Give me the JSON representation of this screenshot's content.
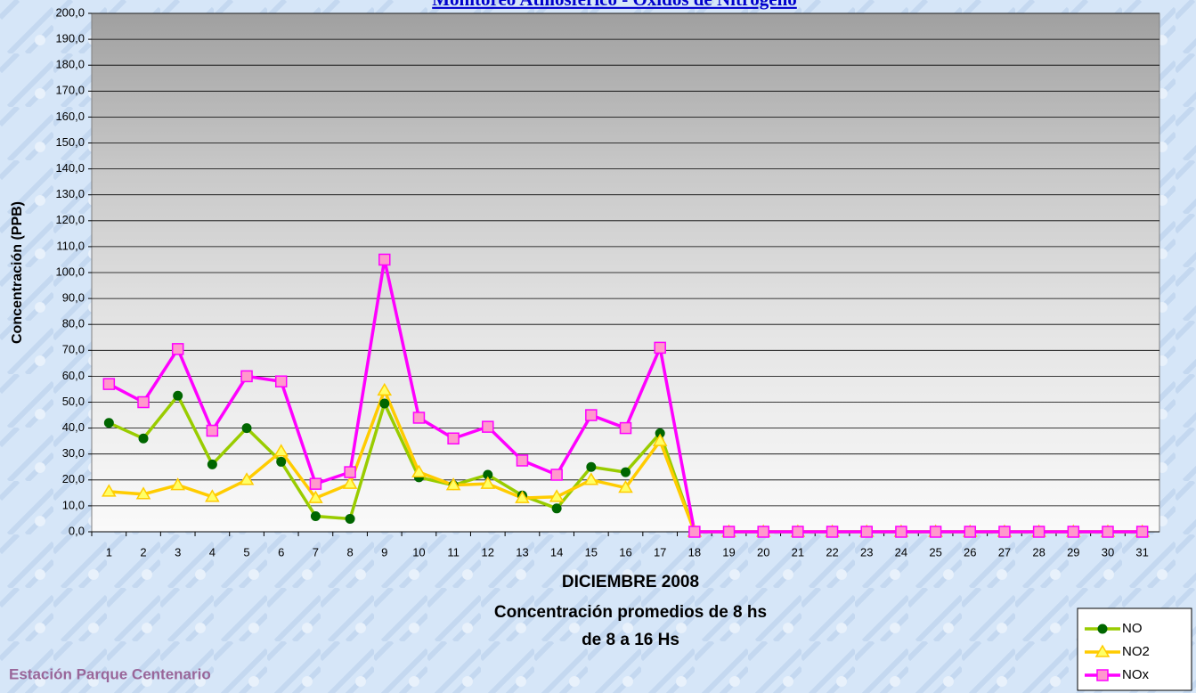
{
  "chart_data": {
    "type": "line",
    "title": "Monitoreo Atmosférico - Óxidos de Nitrógeno",
    "y_label": "Concentración (PPB)",
    "x_label_lines": [
      "DICIEMBRE 2008",
      "Concentración promedios de 8 hs",
      "de 8 a 16 Hs"
    ],
    "footer": "Estación Parque Centenario",
    "categories": [
      "1",
      "2",
      "3",
      "4",
      "5",
      "6",
      "7",
      "8",
      "9",
      "10",
      "11",
      "12",
      "13",
      "14",
      "15",
      "16",
      "17",
      "18",
      "19",
      "20",
      "21",
      "22",
      "23",
      "24",
      "25",
      "26",
      "27",
      "28",
      "29",
      "30",
      "31"
    ],
    "series": [
      {
        "name": "NO",
        "color": "#99cc00",
        "marker": "circle",
        "marker_color": "#006600",
        "values": [
          42,
          36,
          52.5,
          26,
          40,
          27,
          6,
          5,
          49.5,
          21,
          18,
          22,
          14,
          9,
          25,
          23,
          38,
          0,
          0,
          0,
          0,
          0,
          0,
          0,
          0,
          0,
          0,
          0,
          0,
          0,
          0
        ]
      },
      {
        "name": "NO2",
        "color": "#ffcc00",
        "marker": "triangle",
        "marker_color": "#ffff66",
        "values": [
          15.5,
          14.5,
          18,
          13.5,
          20,
          31,
          13,
          18.5,
          54.5,
          23,
          18,
          18.5,
          13,
          13.5,
          20,
          17,
          35,
          0,
          0,
          0,
          0,
          0,
          0,
          0,
          0,
          0,
          0,
          0,
          0,
          0,
          0
        ]
      },
      {
        "name": "NOx",
        "color": "#ff00ff",
        "marker": "square",
        "marker_color": "#ff99cc",
        "values": [
          57,
          50,
          70.5,
          39,
          60,
          58,
          18.5,
          23,
          105,
          44,
          36,
          40.5,
          27.5,
          22,
          45,
          40,
          71,
          0,
          0,
          0,
          0,
          0,
          0,
          0,
          0,
          0,
          0,
          0,
          0,
          0,
          0
        ]
      }
    ],
    "ylim": [
      0,
      200
    ],
    "yticks": [
      {
        "value": 0,
        "label": "0,0"
      },
      {
        "value": 10,
        "label": "10,0"
      },
      {
        "value": 20,
        "label": "20,0"
      },
      {
        "value": 30,
        "label": "30,0"
      },
      {
        "value": 40,
        "label": "40,0"
      },
      {
        "value": 50,
        "label": "50,0"
      },
      {
        "value": 60,
        "label": "60,0"
      },
      {
        "value": 70,
        "label": "70,0"
      },
      {
        "value": 80,
        "label": "80,0"
      },
      {
        "value": 90,
        "label": "90,0"
      },
      {
        "value": 100,
        "label": "100,0"
      },
      {
        "value": 110,
        "label": "110,0"
      },
      {
        "value": 120,
        "label": "120,0"
      },
      {
        "value": 130,
        "label": "130,0"
      },
      {
        "value": 140,
        "label": "140,0"
      },
      {
        "value": 150,
        "label": "150,0"
      },
      {
        "value": 160,
        "label": "160,0"
      },
      {
        "value": 170,
        "label": "170,0"
      },
      {
        "value": 180,
        "label": "180,0"
      },
      {
        "value": 190,
        "label": "190,0"
      },
      {
        "value": 200,
        "label": "200,0"
      }
    ],
    "grid": true,
    "legend": "bottom-right"
  }
}
